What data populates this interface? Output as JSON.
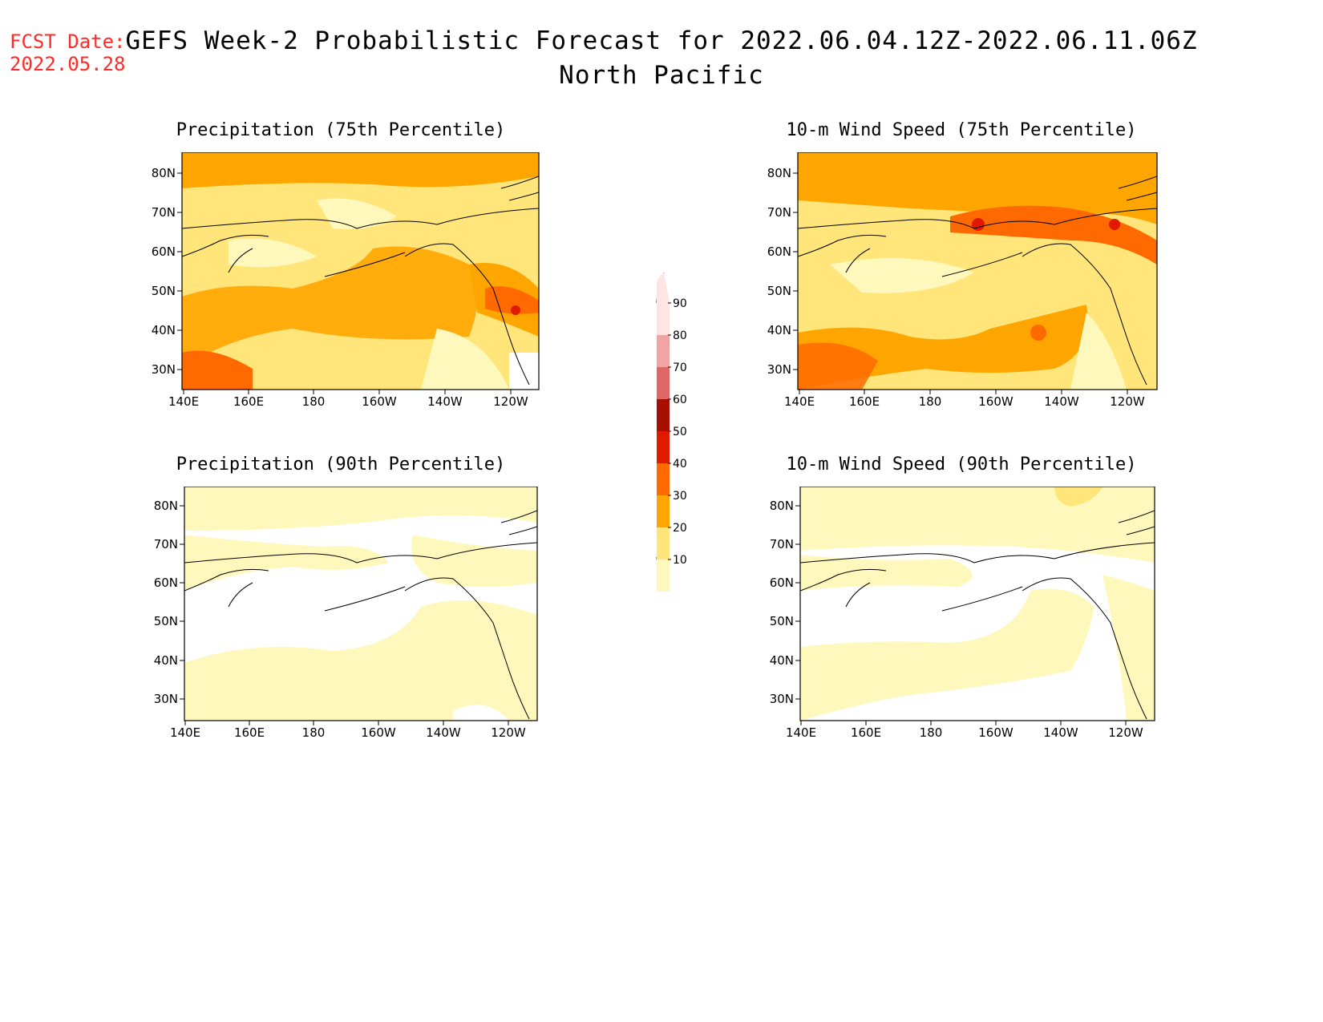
{
  "header": {
    "fcst_label": "FCST Date:",
    "fcst_date": "2022.05.28",
    "title_line1": "GEFS Week-2 Probabilistic Forecast for 2022.06.04.12Z-2022.06.11.06Z",
    "title_line2": "North Pacific"
  },
  "axes": {
    "lat_labels": [
      "80N",
      "70N",
      "60N",
      "50N",
      "40N",
      "30N"
    ],
    "lon_labels": [
      "140E",
      "160E",
      "180",
      "160W",
      "140W",
      "120W"
    ]
  },
  "panels": [
    {
      "id": "precip75",
      "title": "Precipitation (75th Percentile)"
    },
    {
      "id": "wind75",
      "title": "10-m Wind Speed (75th Percentile)"
    },
    {
      "id": "precip90",
      "title": "Precipitation (90th Percentile)"
    },
    {
      "id": "wind90",
      "title": "10-m Wind Speed (90th Percentile)"
    }
  ],
  "colorbar": {
    "labels": [
      "90",
      "80",
      "70",
      "60",
      "50",
      "40",
      "30",
      "20",
      "10"
    ],
    "colors": [
      "#ffe4e4",
      "#f0a4a4",
      "#dd6666",
      "#a60e00",
      "#e01a00",
      "#ff6a00",
      "#ffa500",
      "#ffe57a",
      "#fff8bd"
    ]
  }
}
